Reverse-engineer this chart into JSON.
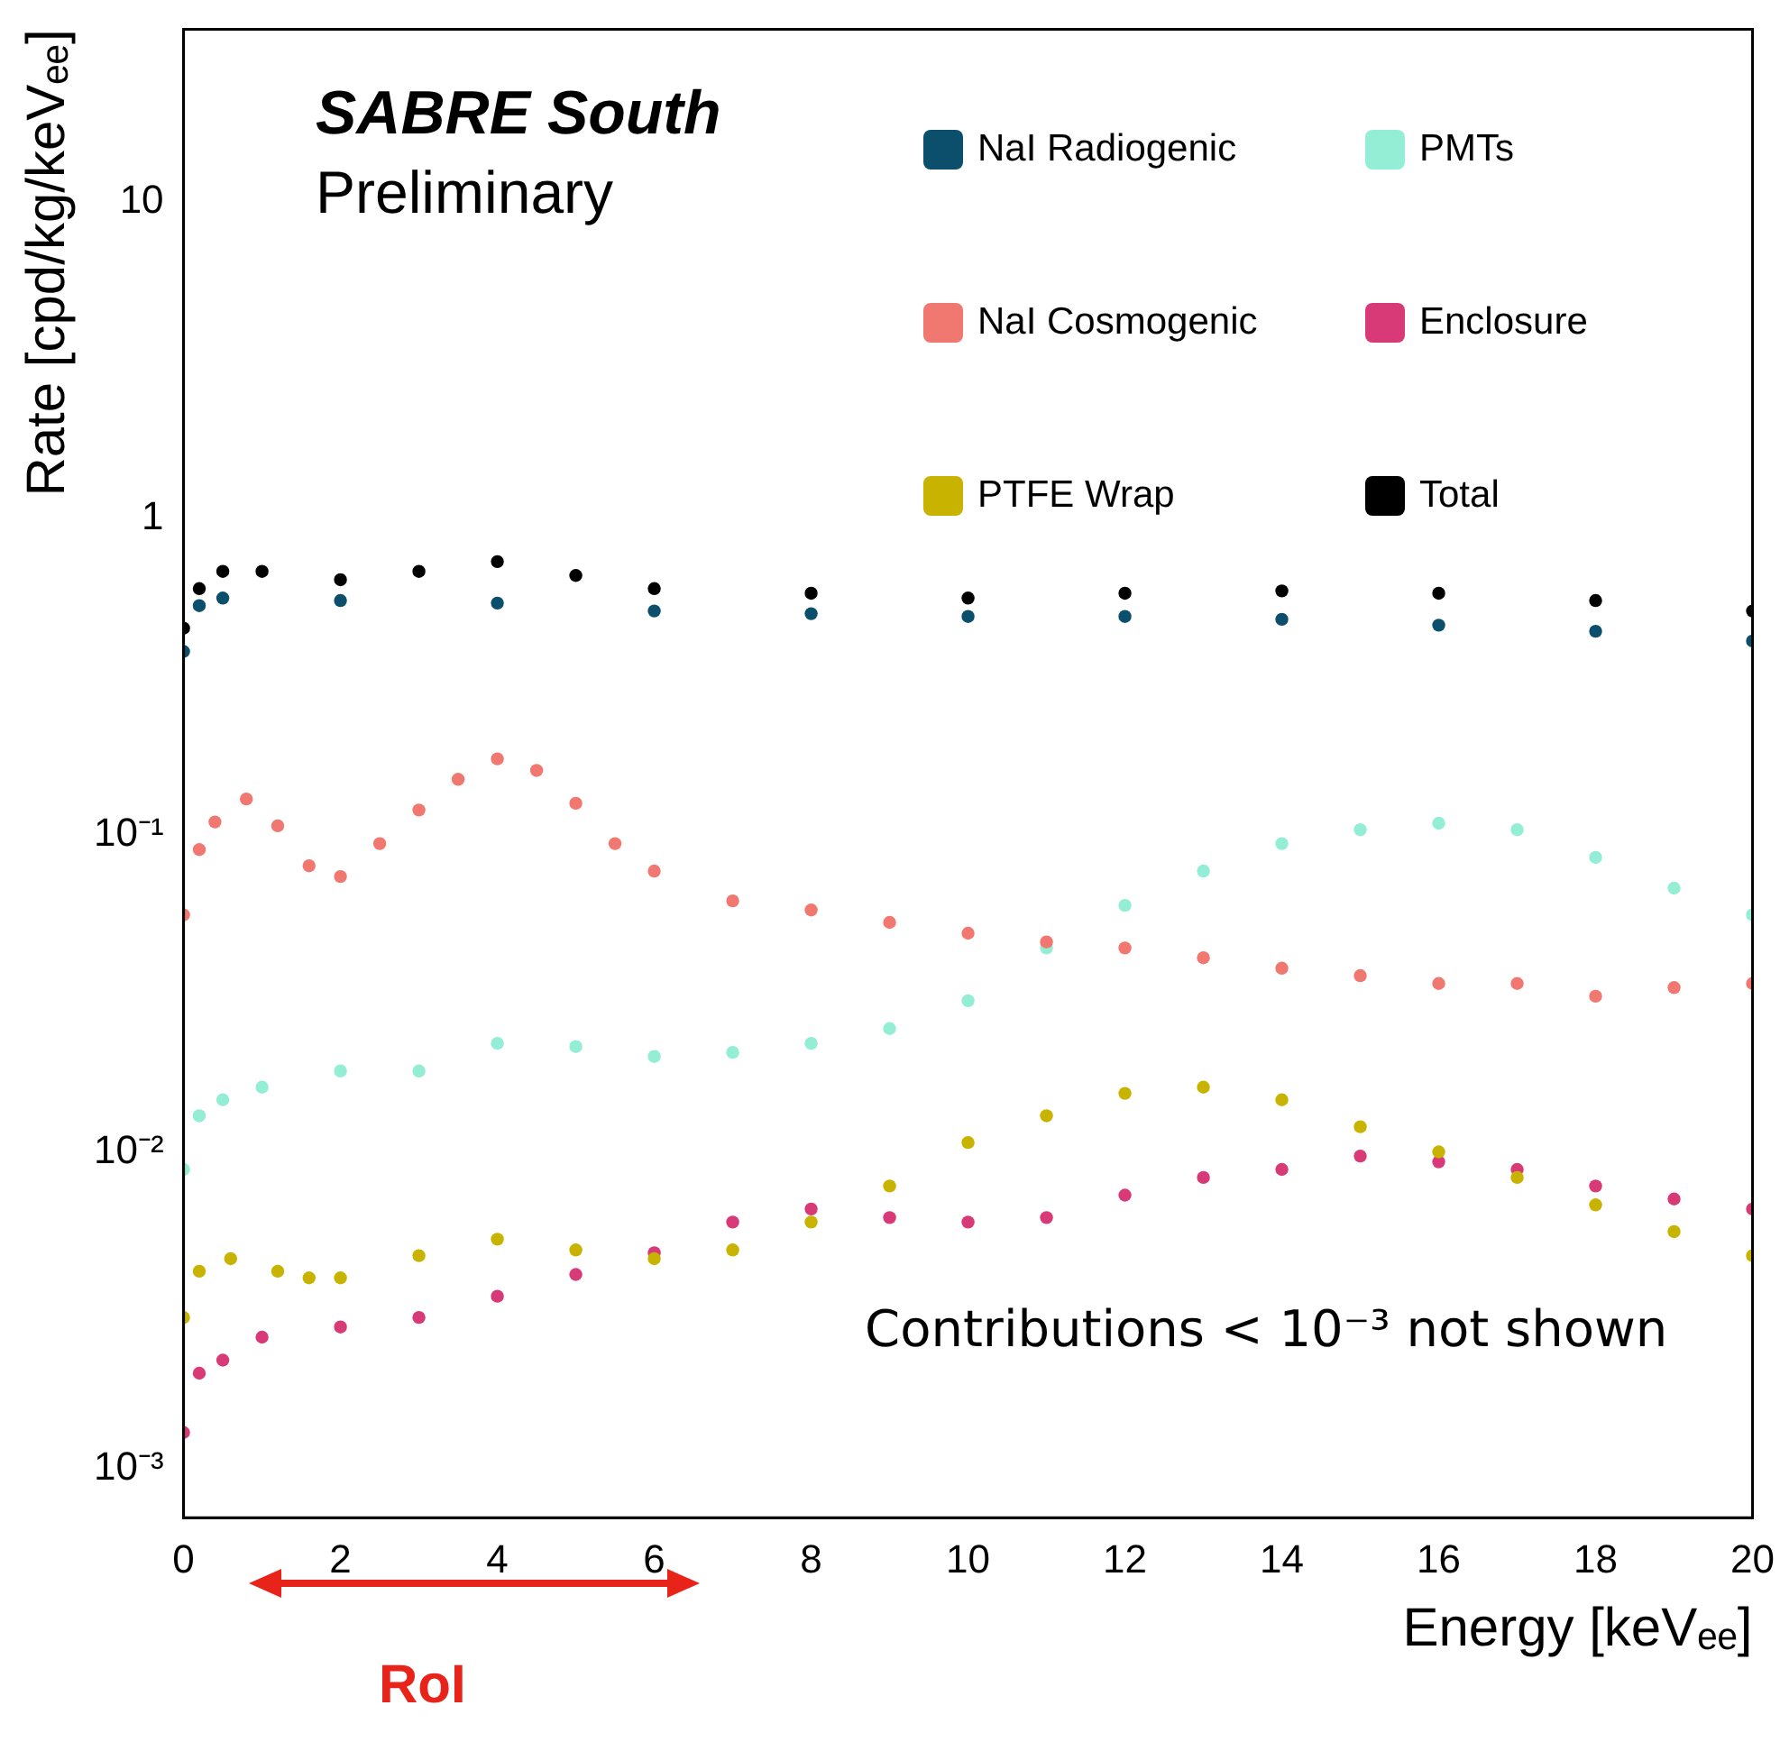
{
  "chart_data": {
    "type": "scatter",
    "title": "SABRE South",
    "subtitle": "Preliminary",
    "xlabel": "Energy [keVₑₑ]",
    "ylabel": "Rate [cpd/kg/keVₑₑ]",
    "annotations": [
      "Contributions < 10⁻³ not shown",
      "RoI"
    ],
    "log": "y",
    "grid": false,
    "legend": "top right",
    "marker": "circle",
    "xlim": [
      0,
      20
    ],
    "xticks": [
      0,
      2,
      4,
      6,
      8,
      10,
      12,
      14,
      16,
      18,
      20
    ],
    "ylim": [
      0.0007,
      35
    ],
    "yticks": [
      {
        "value": 0.001,
        "label": "10⁻³"
      },
      {
        "value": 0.01,
        "label": "10⁻²"
      },
      {
        "value": 0.1,
        "label": "10⁻¹"
      },
      1,
      10
    ],
    "series": [
      {
        "name": "NaI Radiogenic",
        "color": "#0b4f6c",
        "x": [
          0,
          0.2,
          0.5,
          2,
          4,
          6,
          8,
          10,
          12,
          14,
          16,
          18,
          20
        ],
        "values": [
          0.38,
          0.53,
          0.56,
          0.55,
          0.54,
          0.51,
          0.5,
          0.49,
          0.49,
          0.48,
          0.46,
          0.44,
          0.41
        ]
      },
      {
        "name": "NaI Cosmogenic",
        "color": "#f07870",
        "x": [
          0,
          0.2,
          0.4,
          0.8,
          1.2,
          1.6,
          2,
          2.5,
          3,
          3.5,
          4,
          4.5,
          5,
          5.5,
          6,
          7,
          8,
          9,
          10,
          11,
          12,
          13,
          14,
          15,
          16,
          17,
          18,
          19,
          20
        ],
        "values": [
          0.056,
          0.09,
          0.11,
          0.13,
          0.107,
          0.08,
          0.074,
          0.094,
          0.12,
          0.15,
          0.174,
          0.16,
          0.126,
          0.094,
          0.077,
          0.062,
          0.058,
          0.053,
          0.049,
          0.046,
          0.044,
          0.041,
          0.038,
          0.036,
          0.034,
          0.034,
          0.031,
          0.033,
          0.034
        ]
      },
      {
        "name": "PTFE Wrap",
        "color": "#c8b400",
        "x": [
          0,
          0.2,
          0.6,
          1.2,
          1.6,
          2,
          3,
          4,
          5,
          6,
          7,
          8,
          9,
          10,
          11,
          12,
          13,
          14,
          15,
          16,
          17,
          18,
          19,
          20
        ],
        "values": [
          0.003,
          0.0042,
          0.0046,
          0.0042,
          0.004,
          0.004,
          0.0047,
          0.0053,
          0.0049,
          0.0046,
          0.0049,
          0.006,
          0.0078,
          0.0107,
          0.013,
          0.0153,
          0.016,
          0.0146,
          0.012,
          0.01,
          0.0083,
          0.0068,
          0.0056,
          0.0047
        ]
      },
      {
        "name": "PMTs",
        "color": "#93eed5",
        "x": [
          0,
          0.2,
          0.5,
          1,
          2,
          3,
          4,
          5,
          6,
          7,
          8,
          9,
          10,
          11,
          12,
          13,
          14,
          15,
          16,
          17,
          18,
          19,
          20
        ],
        "values": [
          0.0088,
          0.013,
          0.0146,
          0.016,
          0.018,
          0.018,
          0.022,
          0.0215,
          0.02,
          0.0206,
          0.022,
          0.0245,
          0.03,
          0.044,
          0.06,
          0.077,
          0.094,
          0.104,
          0.109,
          0.104,
          0.085,
          0.068,
          0.056
        ]
      },
      {
        "name": "Enclosure",
        "color": "#d83a78",
        "x": [
          0,
          0.2,
          0.5,
          1,
          2,
          3,
          4,
          5,
          6,
          7,
          8,
          9,
          10,
          11,
          12,
          13,
          14,
          15,
          16,
          17,
          18,
          19,
          20
        ],
        "values": [
          0.0013,
          0.002,
          0.0022,
          0.0026,
          0.0028,
          0.003,
          0.0035,
          0.0041,
          0.0048,
          0.006,
          0.0066,
          0.0062,
          0.006,
          0.0062,
          0.0073,
          0.0083,
          0.0088,
          0.0097,
          0.0093,
          0.0088,
          0.0078,
          0.0071,
          0.0066
        ]
      },
      {
        "name": "Total",
        "color": "#000000",
        "x": [
          0,
          0.2,
          0.5,
          1,
          2,
          3,
          4,
          5,
          6,
          8,
          10,
          12,
          14,
          16,
          18,
          20
        ],
        "values": [
          0.45,
          0.6,
          0.68,
          0.68,
          0.64,
          0.68,
          0.73,
          0.66,
          0.6,
          0.58,
          0.56,
          0.58,
          0.59,
          0.58,
          0.55,
          0.51
        ]
      }
    ]
  }
}
